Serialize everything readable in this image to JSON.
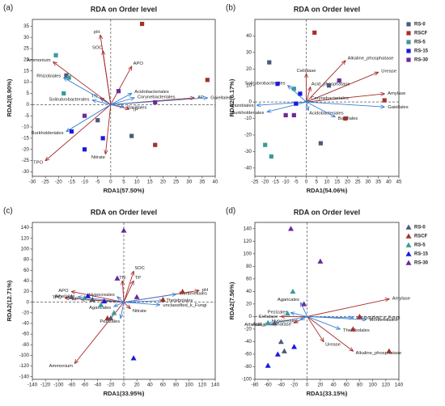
{
  "chart_data": [
    {
      "type": "scatter",
      "panel": "(a)",
      "title": "RDA on Order level",
      "xlabel": "RDA1(57.50%)",
      "ylabel": "RDA2(8.90%)",
      "xlim": [
        -30,
        40
      ],
      "ylim": [
        -32,
        38
      ],
      "xticks": [
        -30,
        -25,
        -20,
        -15,
        -10,
        -5,
        0,
        5,
        10,
        15,
        20,
        25,
        30,
        35,
        40
      ],
      "yticks": [
        -30,
        -25,
        -20,
        -15,
        -10,
        -5,
        0,
        5,
        10,
        15,
        20,
        25,
        30,
        35
      ],
      "marker": "square",
      "series": [
        {
          "color": "#4a5a7a",
          "x": [
            -17,
            8,
            -5
          ],
          "y": [
            13,
            -14,
            -7
          ]
        },
        {
          "color": "#a3322a",
          "x": [
            12,
            37,
            17
          ],
          "y": [
            36,
            11,
            -18
          ]
        },
        {
          "color": "#3a9a9a",
          "x": [
            -21,
            -18,
            -16
          ],
          "y": [
            22,
            5,
            12
          ]
        },
        {
          "color": "#1a1adb",
          "x": [
            -10,
            -3,
            -15
          ],
          "y": [
            -20,
            -15,
            -12
          ]
        },
        {
          "color": "#6a2a9a",
          "x": [
            -10,
            17,
            3
          ],
          "y": [
            -5,
            1,
            6
          ]
        }
      ],
      "vector_groups": [
        {
          "color": "#a52a2a",
          "names": [
            "pH",
            "SOC",
            "APO",
            "TN",
            "AP",
            "TP",
            "Nitrate",
            "TPO",
            "Ammonium"
          ],
          "x": [
            -4,
            -3,
            8,
            -4,
            32,
            7,
            -2,
            -25,
            -22
          ],
          "y": [
            31,
            24,
            17,
            3,
            3,
            -2,
            -22,
            -25,
            19
          ]
        },
        {
          "color": "#3b7fd4",
          "names": [
            "Rhizobiales",
            "Solirubrobacterales",
            "Acidobacteriales",
            "Corynebacteriales",
            "Gaiellales",
            "Bacillales",
            "Burkholderiales"
          ],
          "x": [
            -18,
            -7,
            8,
            9,
            37,
            5,
            -17
          ],
          "y": [
            12,
            2,
            5,
            3,
            3,
            -1,
            -12
          ]
        }
      ]
    },
    {
      "type": "scatter",
      "panel": "(b)",
      "title": "RDA on Order level",
      "xlabel": "RDA1(54.06%)",
      "ylabel": "RDA2(6.17%)",
      "xlim": [
        -25,
        45
      ],
      "ylim": [
        -45,
        50
      ],
      "xticks": [
        -25,
        -20,
        -15,
        -10,
        -5,
        0,
        5,
        10,
        15,
        20,
        25,
        30,
        35,
        40,
        45
      ],
      "yticks": [
        -40,
        -30,
        -20,
        -10,
        0,
        10,
        20,
        30,
        40
      ],
      "marker": "square",
      "legend": "right",
      "series": [
        {
          "name": "RS-0",
          "color": "#4a5a7a",
          "x": [
            -18,
            11,
            7
          ],
          "y": [
            24,
            10,
            -25
          ]
        },
        {
          "name": "RSCF",
          "color": "#a3322a",
          "x": [
            4,
            38,
            19
          ],
          "y": [
            42,
            1,
            -10
          ]
        },
        {
          "name": "RS-5",
          "color": "#3a9a9a",
          "x": [
            -20,
            -17,
            -6
          ],
          "y": [
            -26,
            -33,
            8
          ]
        },
        {
          "name": "RS-15",
          "color": "#1a1adb",
          "x": [
            -14,
            -5,
            -3
          ],
          "y": [
            11,
            -1,
            5
          ]
        },
        {
          "name": "RS-30",
          "color": "#6a2a9a",
          "x": [
            16,
            -10,
            -6
          ],
          "y": [
            13,
            -8,
            -8
          ]
        }
      ],
      "vector_groups": [
        {
          "color": "#a52a2a",
          "names": [
            "Cellulase",
            "Alkaline_phosphatase",
            "Urease",
            "Amylase",
            "Acid_phosphatase"
          ],
          "x": [
            0,
            19,
            35,
            38,
            2
          ],
          "y": [
            17,
            25,
            18,
            5,
            9
          ]
        },
        {
          "color": "#3b7fd4",
          "names": [
            "Solirubrobacterales",
            "Rhizobiales",
            "Burkholderiales",
            "Corynebacteriales",
            "Acidobacteriales",
            "Bacillales",
            "Gaiellales"
          ],
          "x": [
            -9,
            -24,
            -19,
            1,
            1,
            14,
            38
          ],
          "y": [
            10,
            -2,
            -6,
            1,
            -5,
            -9,
            -3
          ]
        }
      ]
    },
    {
      "type": "scatter",
      "panel": "(c)",
      "title": "RDA on Order level",
      "xlabel": "RDA1(33.95%)",
      "ylabel": "RDA2(12.71%)",
      "xlim": [
        -140,
        140
      ],
      "ylim": [
        -145,
        150
      ],
      "xticks": [
        -140,
        -120,
        -100,
        -80,
        -60,
        -40,
        -20,
        0,
        20,
        40,
        60,
        80,
        100,
        120,
        140
      ],
      "yticks": [
        -140,
        -120,
        -100,
        -80,
        -60,
        -40,
        -20,
        0,
        20,
        40,
        60,
        80,
        100,
        120,
        140
      ],
      "marker": "triangle",
      "series": [
        {
          "color": "#4a5a7a",
          "x": [
            -80,
            -48,
            -20
          ],
          "y": [
            10,
            5,
            -30
          ]
        },
        {
          "color": "#a3322a",
          "x": [
            -25,
            90,
            60
          ],
          "y": [
            -30,
            20,
            5
          ]
        },
        {
          "color": "#3a9a9a",
          "x": [
            -60,
            -35,
            -15
          ],
          "y": [
            8,
            -5,
            -20
          ]
        },
        {
          "color": "#1a1adb",
          "x": [
            -55,
            -30,
            15
          ],
          "y": [
            12,
            2,
            -105
          ]
        },
        {
          "color": "#6a2a9a",
          "x": [
            0,
            -10,
            20
          ],
          "y": [
            135,
            45,
            10
          ]
        }
      ],
      "vector_groups": [
        {
          "color": "#a52a2a",
          "names": [
            "APO",
            "TPO",
            "AP",
            "TN",
            "SOC",
            "TP",
            "pH",
            "Ammonium",
            "Nitrate"
          ],
          "x": [
            -80,
            -90,
            -65,
            -2,
            15,
            15,
            115,
            -75,
            10
          ],
          "y": [
            20,
            8,
            5,
            40,
            58,
            40,
            22,
            -115,
            -12
          ]
        },
        {
          "color": "#3b7fd4",
          "names": [
            "Atheliales",
            "Hypocreales",
            "Agaricales",
            "Mortierellales",
            "Thelebolales",
            "unclassified_k_Fungi",
            "Pezizales"
          ],
          "x": [
            -70,
            -10,
            -15,
            80,
            60,
            55,
            -5
          ],
          "y": [
            10,
            10,
            -8,
            15,
            3,
            -5,
            -30
          ]
        }
      ]
    },
    {
      "type": "scatter",
      "panel": "(d)",
      "title": "RDA on Order level",
      "xlabel": "RDA1(33.15%)",
      "ylabel": "RDA2(7.56%)",
      "xlim": [
        -80,
        140
      ],
      "ylim": [
        -100,
        150
      ],
      "xticks": [
        -80,
        -60,
        -40,
        -20,
        0,
        20,
        40,
        60,
        80,
        100,
        120,
        140
      ],
      "yticks": [
        -100,
        -80,
        -60,
        -40,
        -20,
        0,
        20,
        40,
        60,
        80,
        100,
        120,
        140
      ],
      "marker": "triangle",
      "legend": "right",
      "series": [
        {
          "name": "RS-0",
          "color": "#4a5a7a",
          "x": [
            -40,
            -35,
            -50
          ],
          "y": [
            -40,
            -55,
            -10
          ]
        },
        {
          "name": "RSCF",
          "color": "#a3322a",
          "x": [
            125,
            80,
            70
          ],
          "y": [
            -55,
            0,
            -20
          ]
        },
        {
          "name": "RS-5",
          "color": "#3a9a9a",
          "x": [
            -22,
            -60,
            -30
          ],
          "y": [
            40,
            -10,
            5
          ]
        },
        {
          "name": "RS-15",
          "color": "#1a1adb",
          "x": [
            -60,
            -45,
            -20
          ],
          "y": [
            -78,
            -60,
            -48
          ]
        },
        {
          "name": "RS-30",
          "color": "#6a2a9a",
          "x": [
            -25,
            20,
            -5
          ],
          "y": [
            140,
            88,
            20
          ]
        }
      ],
      "vector_groups": [
        {
          "color": "#a52a2a",
          "names": [
            "Amylase",
            "Cellulase",
            "Acid_phosphatase",
            "Urease",
            "Alkaline_phosphatase"
          ],
          "x": [
            125,
            -40,
            -20,
            25,
            70
          ],
          "y": [
            28,
            0,
            -10,
            -40,
            -55
          ]
        },
        {
          "color": "#3b7fd4",
          "names": [
            "Agaricales",
            "Pezizales",
            "Atheliales",
            "Hypocreales",
            "unclassified_k_Fungi",
            "Mortierellales",
            "Thelebolales"
          ],
          "x": [
            -10,
            -25,
            -60,
            -10,
            70,
            90,
            50
          ],
          "y": [
            22,
            6,
            -12,
            -5,
            -2,
            -5,
            -20
          ]
        }
      ]
    }
  ]
}
